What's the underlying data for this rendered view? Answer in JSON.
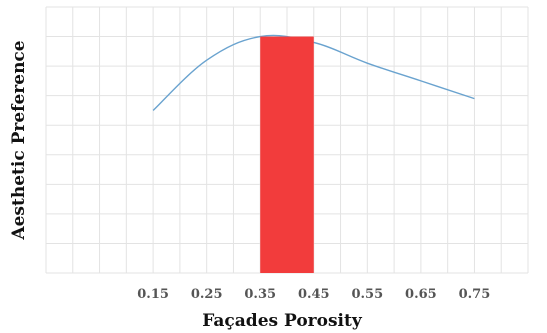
{
  "chart_data": {
    "type": "line",
    "title": "",
    "xlabel": "Façades Porosity",
    "ylabel": "Aesthetic Preference",
    "x": [
      0.15,
      0.25,
      0.35,
      0.45,
      0.55,
      0.65,
      0.75
    ],
    "x_tick_labels": [
      "0.15",
      "0.25",
      "0.35",
      "0.45",
      "0.55",
      "0.65",
      "0.75"
    ],
    "series": [
      {
        "values": [
          0.55,
          0.72,
          0.8,
          0.78,
          0.71,
          0.65,
          0.59
        ]
      }
    ],
    "highlight": {
      "x_from": 0.35,
      "x_to": 0.45,
      "color": "#f23c3c"
    },
    "xlim": [
      -0.05,
      0.85
    ],
    "ylim": [
      0,
      0.9
    ],
    "grid": true,
    "line_color": "#6aa3cf",
    "y_ticks_labeled": false
  }
}
